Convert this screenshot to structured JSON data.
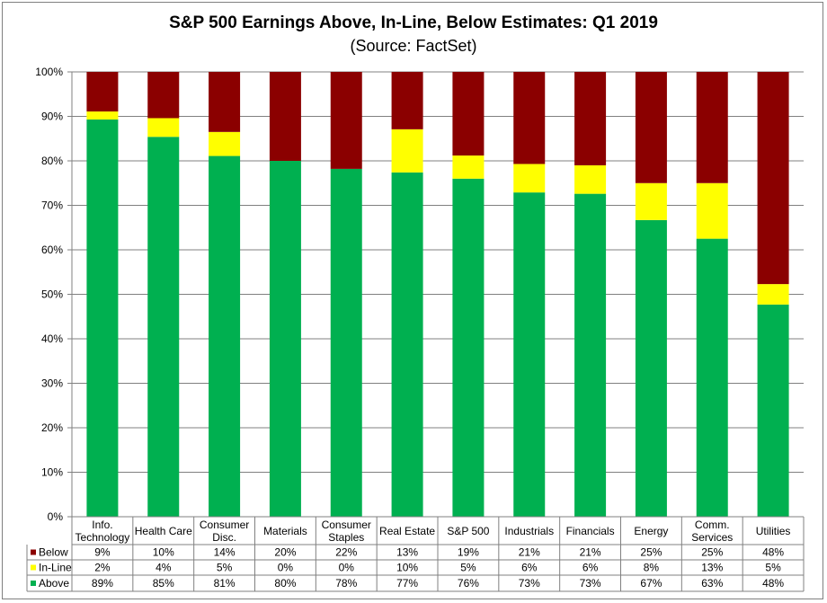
{
  "chart_data": {
    "type": "bar",
    "stacked": true,
    "title": "S&P 500 Earnings Above, In-Line, Below Estimates: Q1 2019",
    "subtitle": "(Source: FactSet)",
    "ylim": [
      0,
      100
    ],
    "yticks": [
      "0%",
      "10%",
      "20%",
      "30%",
      "40%",
      "50%",
      "60%",
      "70%",
      "80%",
      "90%",
      "100%"
    ],
    "grid": true,
    "categories": [
      [
        "Info.",
        "Technology"
      ],
      [
        "Health Care"
      ],
      [
        "Consumer",
        "Disc."
      ],
      [
        "Materials"
      ],
      [
        "Consumer",
        "Staples"
      ],
      [
        "Real Estate"
      ],
      [
        "S&P 500"
      ],
      [
        "Industrials"
      ],
      [
        "Financials"
      ],
      [
        "Energy"
      ],
      [
        "Comm.",
        "Services"
      ],
      [
        "Utilities"
      ]
    ],
    "series": [
      {
        "name": "Above",
        "color": "#00b050",
        "values": [
          89.3,
          85.4,
          81.1,
          80.0,
          78.2,
          77.4,
          76.0,
          72.9,
          72.6,
          66.7,
          62.5,
          47.7
        ],
        "labels": [
          "89%",
          "85%",
          "81%",
          "80%",
          "78%",
          "77%",
          "76%",
          "73%",
          "73%",
          "67%",
          "63%",
          "48%"
        ]
      },
      {
        "name": "In-Line",
        "color": "#ffff00",
        "values": [
          1.8,
          4.2,
          5.4,
          0.0,
          0.0,
          9.7,
          5.2,
          6.4,
          6.4,
          8.3,
          12.5,
          4.6
        ],
        "labels": [
          "2%",
          "4%",
          "5%",
          "0%",
          "0%",
          "10%",
          "5%",
          "6%",
          "6%",
          "8%",
          "13%",
          "5%"
        ]
      },
      {
        "name": "Below",
        "color": "#8b0000",
        "values": [
          8.9,
          10.4,
          13.5,
          20.0,
          21.8,
          12.9,
          18.8,
          20.7,
          21.0,
          25.0,
          25.0,
          47.7
        ],
        "labels": [
          "9%",
          "10%",
          "14%",
          "20%",
          "22%",
          "13%",
          "19%",
          "21%",
          "21%",
          "25%",
          "25%",
          "48%"
        ]
      }
    ],
    "table_rows": [
      "Below",
      "In-Line",
      "Above"
    ]
  }
}
